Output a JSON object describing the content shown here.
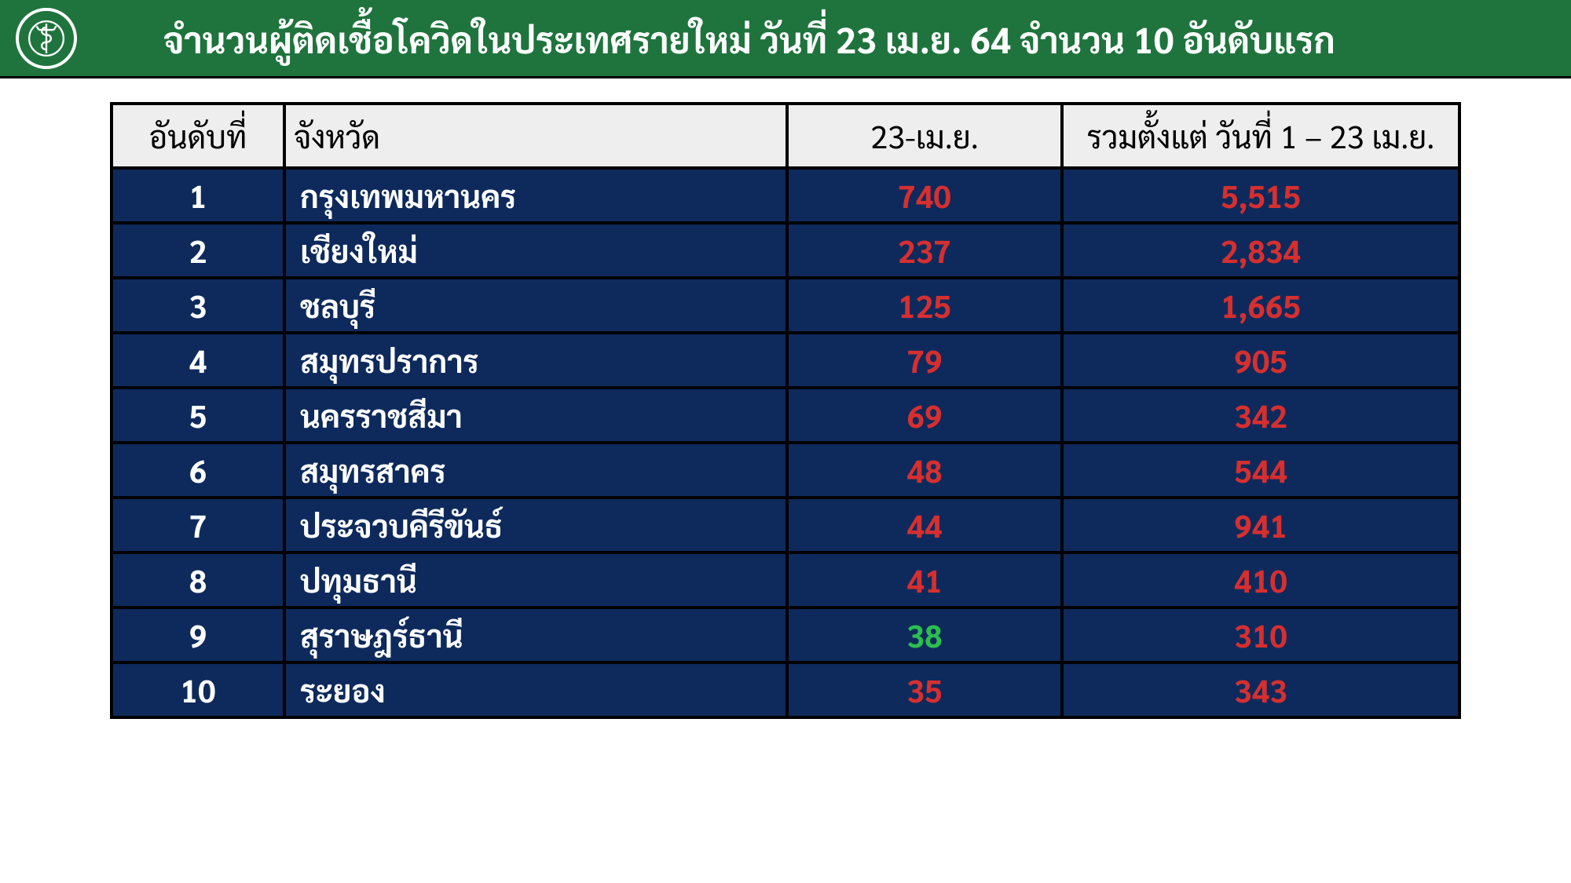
{
  "header": {
    "title": "จำนวนผู้ติดเชื้อโควิดในประเทศรายใหม่ วันที่ 23 เม.ย. 64 จำนวน 10 อันดับแรก"
  },
  "table": {
    "type": "table",
    "header_bg": "#eeeeee",
    "header_text_color": "#000000",
    "row_bg": "#0e2a5c",
    "row_text_color": "#ffffff",
    "value_color_default": "#d62f2f",
    "value_color_alt": "#2bbf4e",
    "border_color": "#000000",
    "columns": [
      "อันดับที่",
      "จังหวัด",
      "23-เม.ย.",
      "รวมตั้งแต่\nวันที่ 1 – 23 เม.ย."
    ],
    "rows": [
      {
        "rank": "1",
        "province": "กรุงเทพมหานคร",
        "day": "740",
        "day_color": "#d62f2f",
        "total": "5,515",
        "total_color": "#d62f2f"
      },
      {
        "rank": "2",
        "province": "เชียงใหม่",
        "day": "237",
        "day_color": "#d62f2f",
        "total": "2,834",
        "total_color": "#d62f2f"
      },
      {
        "rank": "3",
        "province": "ชลบุรี",
        "day": "125",
        "day_color": "#d62f2f",
        "total": "1,665",
        "total_color": "#d62f2f"
      },
      {
        "rank": "4",
        "province": "สมุทรปราการ",
        "day": "79",
        "day_color": "#d62f2f",
        "total": "905",
        "total_color": "#d62f2f"
      },
      {
        "rank": "5",
        "province": "นครราชสีมา",
        "day": "69",
        "day_color": "#d62f2f",
        "total": "342",
        "total_color": "#d62f2f"
      },
      {
        "rank": "6",
        "province": "สมุทรสาคร",
        "day": "48",
        "day_color": "#d62f2f",
        "total": "544",
        "total_color": "#d62f2f"
      },
      {
        "rank": "7",
        "province": "ประจวบคีรีขันธ์",
        "day": "44",
        "day_color": "#d62f2f",
        "total": "941",
        "total_color": "#d62f2f"
      },
      {
        "rank": "8",
        "province": "ปทุมธานี",
        "day": "41",
        "day_color": "#d62f2f",
        "total": "410",
        "total_color": "#d62f2f"
      },
      {
        "rank": "9",
        "province": "สุราษฎร์ธานี",
        "day": "38",
        "day_color": "#2bbf4e",
        "total": "310",
        "total_color": "#d62f2f"
      },
      {
        "rank": "10",
        "province": "ระยอง",
        "day": "35",
        "day_color": "#d62f2f",
        "total": "343",
        "total_color": "#d62f2f"
      }
    ]
  }
}
